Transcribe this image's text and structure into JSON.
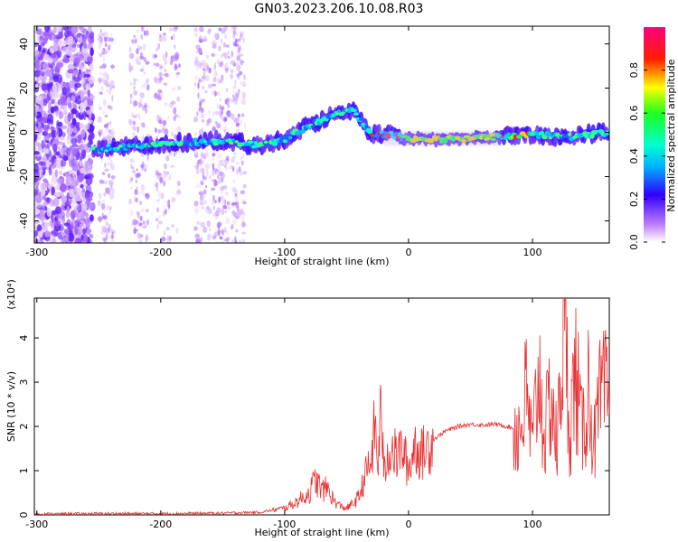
{
  "title": "GN03.2023.206.10.08.R03",
  "chart_data": [
    {
      "type": "heatmap",
      "xlabel": "Height of straight line (km)",
      "ylabel": "Frequency (Hz)",
      "xlim": [
        -302,
        162
      ],
      "ylim": [
        -50,
        48
      ],
      "xticks": [
        -300,
        -200,
        -100,
        0,
        100
      ],
      "yticks": [
        -40,
        -20,
        0,
        20,
        40
      ],
      "grid": false,
      "colorbar": {
        "label": "Normalized spectral amplitude",
        "range": [
          0,
          1
        ],
        "ticks": [
          "0.0",
          "0.2",
          "0.4",
          "0.6",
          "0.8"
        ]
      },
      "ridge": [
        {
          "x": -255,
          "y": -8
        },
        {
          "x": -200,
          "y": -5
        },
        {
          "x": -150,
          "y": -4
        },
        {
          "x": -120,
          "y": -6
        },
        {
          "x": -100,
          "y": -3
        },
        {
          "x": -80,
          "y": 3
        },
        {
          "x": -60,
          "y": 8
        },
        {
          "x": -45,
          "y": 10
        },
        {
          "x": -38,
          "y": 5
        },
        {
          "x": -30,
          "y": -1
        },
        {
          "x": -15,
          "y": -1
        },
        {
          "x": 0,
          "y": -3
        },
        {
          "x": 40,
          "y": -3
        },
        {
          "x": 70,
          "y": -2
        },
        {
          "x": 100,
          "y": -1
        },
        {
          "x": 130,
          "y": -2
        },
        {
          "x": 162,
          "y": 0
        }
      ]
    },
    {
      "type": "line",
      "xlabel": "Height of straight line (km)",
      "ylabel": "SNR (10 * v/v)",
      "y_multiplier": "(x10⁴)",
      "xlim": [
        -302,
        162
      ],
      "ylim": [
        0,
        4.9
      ],
      "xticks": [
        -300,
        -200,
        -100,
        0,
        100
      ],
      "yticks": [
        0,
        1,
        2,
        3,
        4
      ],
      "grid": false,
      "series": [
        {
          "color": "#e83030",
          "x": [
            -302,
            -250,
            -200,
            -150,
            -120,
            -100,
            -90,
            -80,
            -75,
            -70,
            -65,
            -60,
            -55,
            -50,
            -45,
            -40,
            -35,
            -30,
            -27,
            -25,
            -22,
            -20,
            -15,
            -10,
            -5,
            0,
            5,
            10,
            20,
            30,
            40,
            50,
            60,
            70,
            80,
            90,
            95,
            100,
            105,
            110,
            115,
            120,
            125,
            130,
            135,
            140,
            145,
            150,
            155,
            162
          ],
          "y": [
            0.02,
            0.03,
            0.03,
            0.04,
            0.06,
            0.15,
            0.3,
            0.5,
            0.8,
            0.55,
            0.6,
            0.3,
            0.2,
            0.15,
            0.25,
            0.4,
            0.9,
            1.2,
            2.1,
            1.0,
            2.6,
            0.9,
            1.6,
            1.3,
            1.5,
            1.0,
            1.6,
            1.35,
            1.7,
            1.9,
            2.0,
            2.05,
            2.03,
            2.05,
            2.0,
            1.9,
            2.7,
            1.5,
            3.3,
            1.7,
            2.8,
            1.4,
            4.7,
            2.0,
            3.2,
            1.8,
            2.9,
            1.6,
            2.6,
            2.7
          ]
        }
      ]
    }
  ]
}
